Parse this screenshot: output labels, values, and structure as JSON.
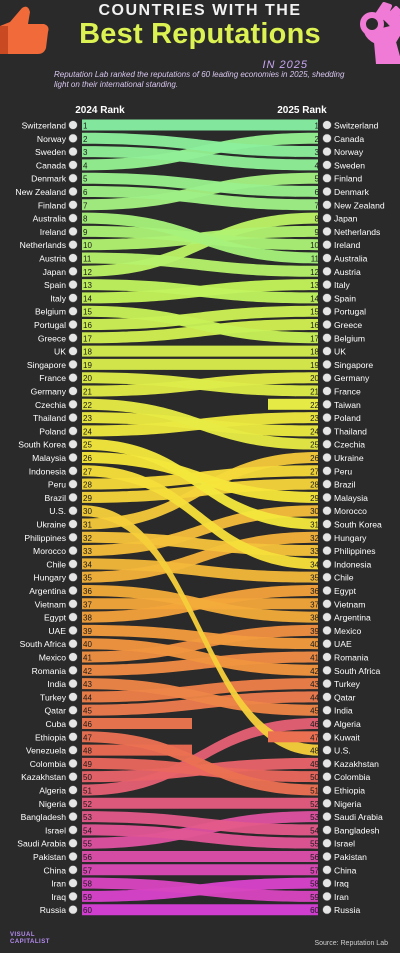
{
  "header": {
    "supertitle": "COUNTRIES WITH THE",
    "title": "Best Reputations",
    "year_tag": "IN 2025",
    "description": "Reputation Lab ranked the reputations of 60 leading economies in 2025, shedding light on their international standing."
  },
  "chart_data": {
    "type": "bump",
    "left_header": "2024 Rank",
    "right_header": "2025 Rank",
    "ranks_2024": [
      "Switzerland",
      "Norway",
      "Sweden",
      "Canada",
      "Denmark",
      "New Zealand",
      "Finland",
      "Australia",
      "Ireland",
      "Netherlands",
      "Austria",
      "Japan",
      "Spain",
      "Italy",
      "Belgium",
      "Portugal",
      "Greece",
      "UK",
      "Singapore",
      "France",
      "Germany",
      "Czechia",
      "Thailand",
      "Poland",
      "South Korea",
      "Malaysia",
      "Indonesia",
      "Peru",
      "Brazil",
      "U.S.",
      "Ukraine",
      "Philippines",
      "Morocco",
      "Chile",
      "Hungary",
      "Argentina",
      "Vietnam",
      "Egypt",
      "UAE",
      "South Africa",
      "Mexico",
      "Romania",
      "India",
      "Turkey",
      "Qatar",
      "Cuba",
      "Ethiopia",
      "Venezuela",
      "Colombia",
      "Kazakhstan",
      "Algeria",
      "Nigeria",
      "Bangladesh",
      "Israel",
      "Saudi Arabia",
      "Pakistan",
      "China",
      "Iran",
      "Iraq",
      "Russia"
    ],
    "ranks_2025": [
      "Switzerland",
      "Canada",
      "Norway",
      "Sweden",
      "Finland",
      "Denmark",
      "New Zealand",
      "Japan",
      "Netherlands",
      "Ireland",
      "Australia",
      "Austria",
      "Italy",
      "Spain",
      "Portugal",
      "Greece",
      "Belgium",
      "UK",
      "Singapore",
      "Germany",
      "France",
      "Taiwan",
      "Poland",
      "Thailand",
      "Czechia",
      "Ukraine",
      "Peru",
      "Brazil",
      "Malaysia",
      "Morocco",
      "South Korea",
      "Hungary",
      "Philippines",
      "Indonesia",
      "Chile",
      "Egypt",
      "Vietnam",
      "Argentina",
      "Mexico",
      "UAE",
      "Romania",
      "South Africa",
      "Turkey",
      "Qatar",
      "India",
      "Algeria",
      "Kuwait",
      "U.S.",
      "Kazakhstan",
      "Colombia",
      "Ethiopia",
      "Nigeria",
      "Saudi Arabia",
      "Bangladesh",
      "Israel",
      "Pakistan",
      "China",
      "Iraq",
      "Iran",
      "Russia"
    ]
  },
  "footer": {
    "brand_line1": "VISUAL",
    "brand_line2": "CAPITALIST",
    "source": "Source: Reputation Lab"
  },
  "colors": {
    "background": "#2a2a2a",
    "title": "#dcf252",
    "top_band": "#86efa2",
    "mid_band": "#f6e63a",
    "orange_band": "#f2a23a",
    "red_band": "#ea6a55",
    "bottom_band": "#d63fd6"
  }
}
